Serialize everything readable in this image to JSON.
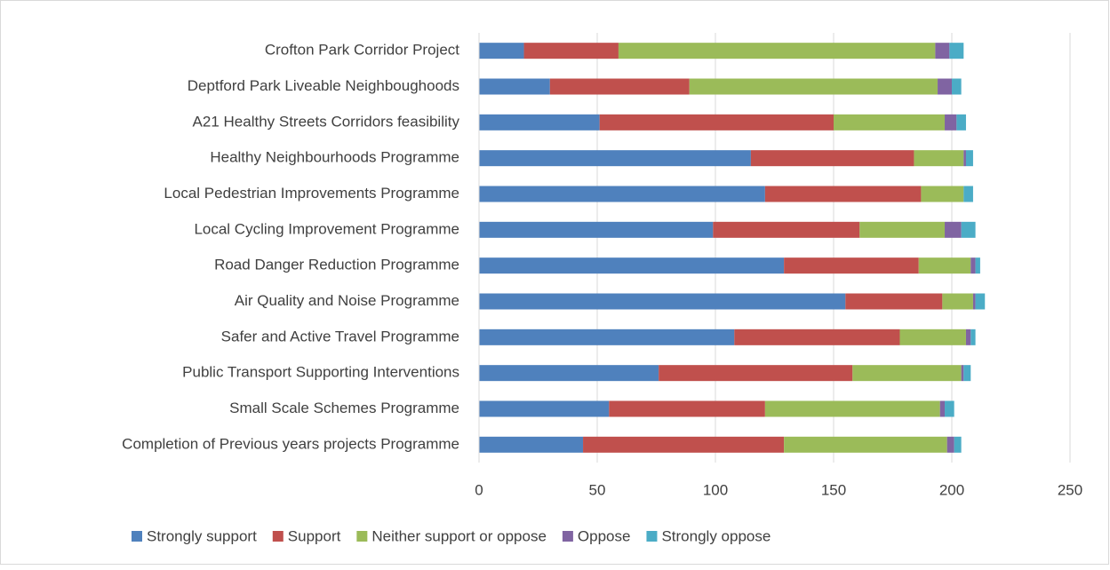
{
  "chart_data": {
    "type": "stacked_barh",
    "categories": [
      "Crofton Park Corridor Project",
      "Deptford Park Liveable Neighboughoods",
      "A21 Healthy Streets Corridors feasibility",
      "Healthy Neighbourhoods Programme",
      "Local Pedestrian Improvements Programme",
      "Local Cycling Improvement Programme",
      "Road Danger Reduction Programme",
      "Air Quality and Noise Programme",
      "Safer and Active Travel Programme",
      "Public Transport Supporting Interventions",
      "Small Scale Schemes Programme",
      "Completion of Previous years projects Programme"
    ],
    "series": [
      {
        "name": "Strongly support",
        "color": "#4f81bd",
        "values": [
          19,
          30,
          51,
          115,
          121,
          99,
          129,
          155,
          108,
          76,
          55,
          44
        ]
      },
      {
        "name": "Support",
        "color": "#c0504d",
        "values": [
          40,
          59,
          99,
          69,
          66,
          62,
          57,
          41,
          70,
          82,
          66,
          85
        ]
      },
      {
        "name": "Neither support or oppose",
        "color": "#9bbb59",
        "values": [
          134,
          105,
          47,
          21,
          18,
          36,
          22,
          13,
          28,
          46,
          74,
          69
        ]
      },
      {
        "name": "Oppose",
        "color": "#8064a2",
        "values": [
          6,
          6,
          5,
          1,
          0,
          7,
          2,
          1,
          2,
          1,
          2,
          3
        ]
      },
      {
        "name": "Strongly oppose",
        "color": "#4bacc6",
        "values": [
          6,
          4,
          4,
          3,
          4,
          6,
          2,
          4,
          2,
          3,
          4,
          3
        ]
      }
    ],
    "xlim": [
      0,
      250
    ],
    "xticks": [
      0,
      50,
      100,
      150,
      200,
      250
    ],
    "grid": true,
    "legend": "bottom"
  }
}
